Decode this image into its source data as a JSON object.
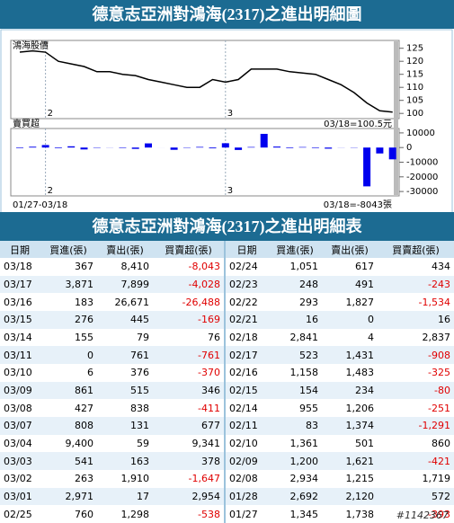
{
  "chart_header": "德意志亞洲對鴻海(2317)之進出明細圖",
  "chart_data": [
    {
      "type": "line",
      "title": "鴻海股價",
      "color": "#000000",
      "categories": [
        null,
        null,
        "2",
        null,
        null,
        null,
        null,
        null,
        null,
        null,
        null,
        null,
        null,
        null,
        null,
        null,
        "3",
        null,
        null,
        null,
        null,
        null,
        null,
        null,
        null,
        null,
        null,
        null,
        null,
        null
      ],
      "values": [
        123.5,
        124,
        123.5,
        120,
        119,
        118,
        116,
        116,
        115,
        114.5,
        113,
        112,
        111,
        110,
        110,
        113,
        112,
        113,
        117,
        117,
        117,
        116,
        115.5,
        115,
        113,
        111,
        108,
        104,
        101,
        100.5
      ],
      "ylim": [
        98,
        128
      ],
      "yticks": [
        100,
        105,
        110,
        115,
        120,
        125
      ],
      "last_label": "03/18=100.5元"
    },
    {
      "type": "bar",
      "title": "賣買超",
      "color": "#0000ee",
      "categories": [
        null,
        null,
        "2",
        null,
        null,
        null,
        null,
        null,
        null,
        null,
        null,
        null,
        null,
        null,
        null,
        null,
        "3",
        null,
        null,
        null,
        null,
        null,
        null,
        null,
        null,
        null,
        null,
        null,
        null,
        null
      ],
      "values": [
        -393,
        572,
        1719,
        -421,
        860,
        -1291,
        -251,
        -80,
        -325,
        -908,
        2837,
        16,
        -1534,
        -243,
        434,
        -538,
        2954,
        -1647,
        378,
        9341,
        677,
        -411,
        346,
        -370,
        -761,
        76,
        -169,
        -26488,
        -4028,
        -8043
      ],
      "ylim": [
        -33000,
        13000
      ],
      "yticks": [
        10000,
        0,
        -10000,
        -20000,
        -30000
      ],
      "range_label": "01/27-03/18",
      "last_label": "03/18=-8043張"
    }
  ],
  "table_header": "德意志亞洲對鴻海(2317)之進出明細表",
  "table": {
    "columns": [
      "日期",
      "買進(張)",
      "賣出(張)",
      "買賣超(張)",
      "日期",
      "買進(張)",
      "賣出(張)",
      "買賣超(張)"
    ],
    "rows": [
      [
        "03/18",
        "367",
        "8,410",
        "-8,043",
        "02/24",
        "1,051",
        "617",
        "434"
      ],
      [
        "03/17",
        "3,871",
        "7,899",
        "-4,028",
        "02/23",
        "248",
        "491",
        "-243"
      ],
      [
        "03/16",
        "183",
        "26,671",
        "-26,488",
        "02/22",
        "293",
        "1,827",
        "-1,534"
      ],
      [
        "03/15",
        "276",
        "445",
        "-169",
        "02/21",
        "16",
        "0",
        "16"
      ],
      [
        "03/14",
        "155",
        "79",
        "76",
        "02/18",
        "2,841",
        "4",
        "2,837"
      ],
      [
        "03/11",
        "0",
        "761",
        "-761",
        "02/17",
        "523",
        "1,431",
        "-908"
      ],
      [
        "03/10",
        "6",
        "376",
        "-370",
        "02/16",
        "1,158",
        "1,483",
        "-325"
      ],
      [
        "03/09",
        "861",
        "515",
        "346",
        "02/15",
        "154",
        "234",
        "-80"
      ],
      [
        "03/08",
        "427",
        "838",
        "-411",
        "02/14",
        "955",
        "1,206",
        "-251"
      ],
      [
        "03/07",
        "808",
        "131",
        "677",
        "02/11",
        "83",
        "1,374",
        "-1,291"
      ],
      [
        "03/04",
        "9,400",
        "59",
        "9,341",
        "02/10",
        "1,361",
        "501",
        "860"
      ],
      [
        "03/03",
        "541",
        "163",
        "378",
        "02/09",
        "1,200",
        "1,621",
        "-421"
      ],
      [
        "03/02",
        "263",
        "1,910",
        "-1,647",
        "02/08",
        "2,934",
        "1,215",
        "1,719"
      ],
      [
        "03/01",
        "2,971",
        "17",
        "2,954",
        "01/28",
        "2,692",
        "2,120",
        "572"
      ],
      [
        "02/25",
        "760",
        "1,298",
        "-538",
        "01/27",
        "1,345",
        "1,738",
        "-393"
      ]
    ]
  },
  "watermark": "#1142367"
}
